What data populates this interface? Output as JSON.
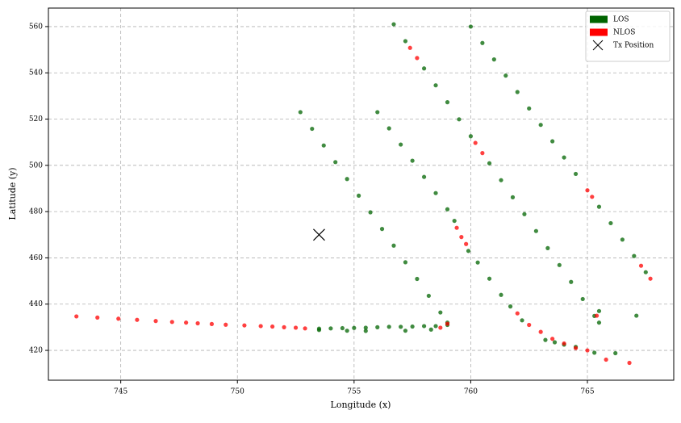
{
  "chart_data": {
    "type": "scatter",
    "xlabel": "Longitude (x)",
    "ylabel": "Latitude (y)",
    "xlim": [
      741.9,
      768.7
    ],
    "ylim": [
      407.1,
      568.0
    ],
    "xticks": [
      745,
      750,
      755,
      760,
      765
    ],
    "yticks": [
      420,
      440,
      460,
      480,
      500,
      520,
      540,
      560
    ],
    "grid": true,
    "legend": "upper right",
    "alpha": 0.75,
    "series": [
      {
        "name": "LOS",
        "color": "#006400",
        "marker": "o",
        "x": [
          752.7,
          753.2,
          753.7,
          754.2,
          754.7,
          755.2,
          755.7,
          756.2,
          756.7,
          757.2,
          757.7,
          758.2,
          758.7,
          759.0,
          759.0,
          758.5,
          758.0,
          757.5,
          757.0,
          756.5,
          756.0,
          755.5,
          755.0,
          754.5,
          754.0,
          753.5,
          758.3,
          757.2,
          755.5,
          754.7,
          753.5,
          756.0,
          756.5,
          757.0,
          757.5,
          758.0,
          758.5,
          759.0,
          759.3,
          759.9,
          760.3,
          760.8,
          761.3,
          761.7,
          762.2,
          763.2,
          763.6,
          764.0,
          764.5,
          765.3,
          766.2,
          756.7,
          757.2,
          758.0,
          758.5,
          759.0,
          759.5,
          760.0,
          760.8,
          761.3,
          761.8,
          762.3,
          762.8,
          763.3,
          763.8,
          764.3,
          764.8,
          765.3,
          765.5,
          765.5,
          760.0,
          760.5,
          761.0,
          761.5,
          762.0,
          762.5,
          763.0,
          763.5,
          764.0,
          764.5,
          765.5,
          766.0,
          766.5,
          767.0,
          767.5,
          767.1
        ],
        "y": [
          523,
          515.8,
          508.6,
          501.4,
          494.1,
          486.9,
          479.7,
          472.5,
          465.3,
          458.1,
          450.9,
          443.6,
          436.4,
          432,
          431,
          430.5,
          430.5,
          430.3,
          430.2,
          430.2,
          430,
          429.8,
          429.7,
          429.6,
          429.5,
          429.4,
          429,
          428.5,
          428.4,
          428.5,
          428.8,
          523,
          516,
          509,
          502,
          495,
          488,
          481,
          476,
          463,
          458,
          451,
          444,
          439,
          433,
          424.5,
          423.5,
          422.5,
          421.5,
          419,
          418.8,
          561,
          553.7,
          541.9,
          534.6,
          527.3,
          519.9,
          512.6,
          500.9,
          493.6,
          486.2,
          478.9,
          471.6,
          464.2,
          456.9,
          449.6,
          442.2,
          434.9,
          432,
          437,
          560,
          552.9,
          545.8,
          538.8,
          531.7,
          524.6,
          517.5,
          510.4,
          503.4,
          496.3,
          482.1,
          475,
          467.9,
          460.8,
          453.8,
          435
        ]
      },
      {
        "name": "NLOS",
        "color": "#ff0000",
        "marker": "o",
        "x": [
          743.1,
          744.0,
          744.9,
          745.7,
          746.5,
          747.2,
          747.8,
          748.3,
          748.9,
          749.5,
          750.3,
          751.0,
          751.5,
          752.0,
          752.5,
          752.9,
          758.7,
          759.0,
          759.4,
          759.6,
          759.8,
          762.0,
          762.5,
          763.0,
          763.5,
          764.0,
          764.5,
          765.0,
          765.8,
          766.8,
          757.4,
          757.7,
          760.2,
          760.5,
          765.4,
          765.0,
          765.2,
          767.3,
          767.7
        ],
        "y": [
          434.7,
          434.2,
          433.7,
          433.2,
          432.7,
          432.3,
          432,
          431.7,
          431.4,
          431.1,
          430.8,
          430.5,
          430.3,
          430,
          429.8,
          429.5,
          429.8,
          431.5,
          473,
          469,
          466,
          436,
          431,
          428,
          425,
          423,
          421,
          420,
          416,
          414.6,
          550.8,
          546.4,
          509.7,
          505.3,
          435,
          489.2,
          486.4,
          456.6,
          451
        ]
      },
      {
        "name": "Tx Position",
        "color": "#000000",
        "marker": "x",
        "x": [
          753.5
        ],
        "y": [
          470
        ]
      }
    ]
  }
}
